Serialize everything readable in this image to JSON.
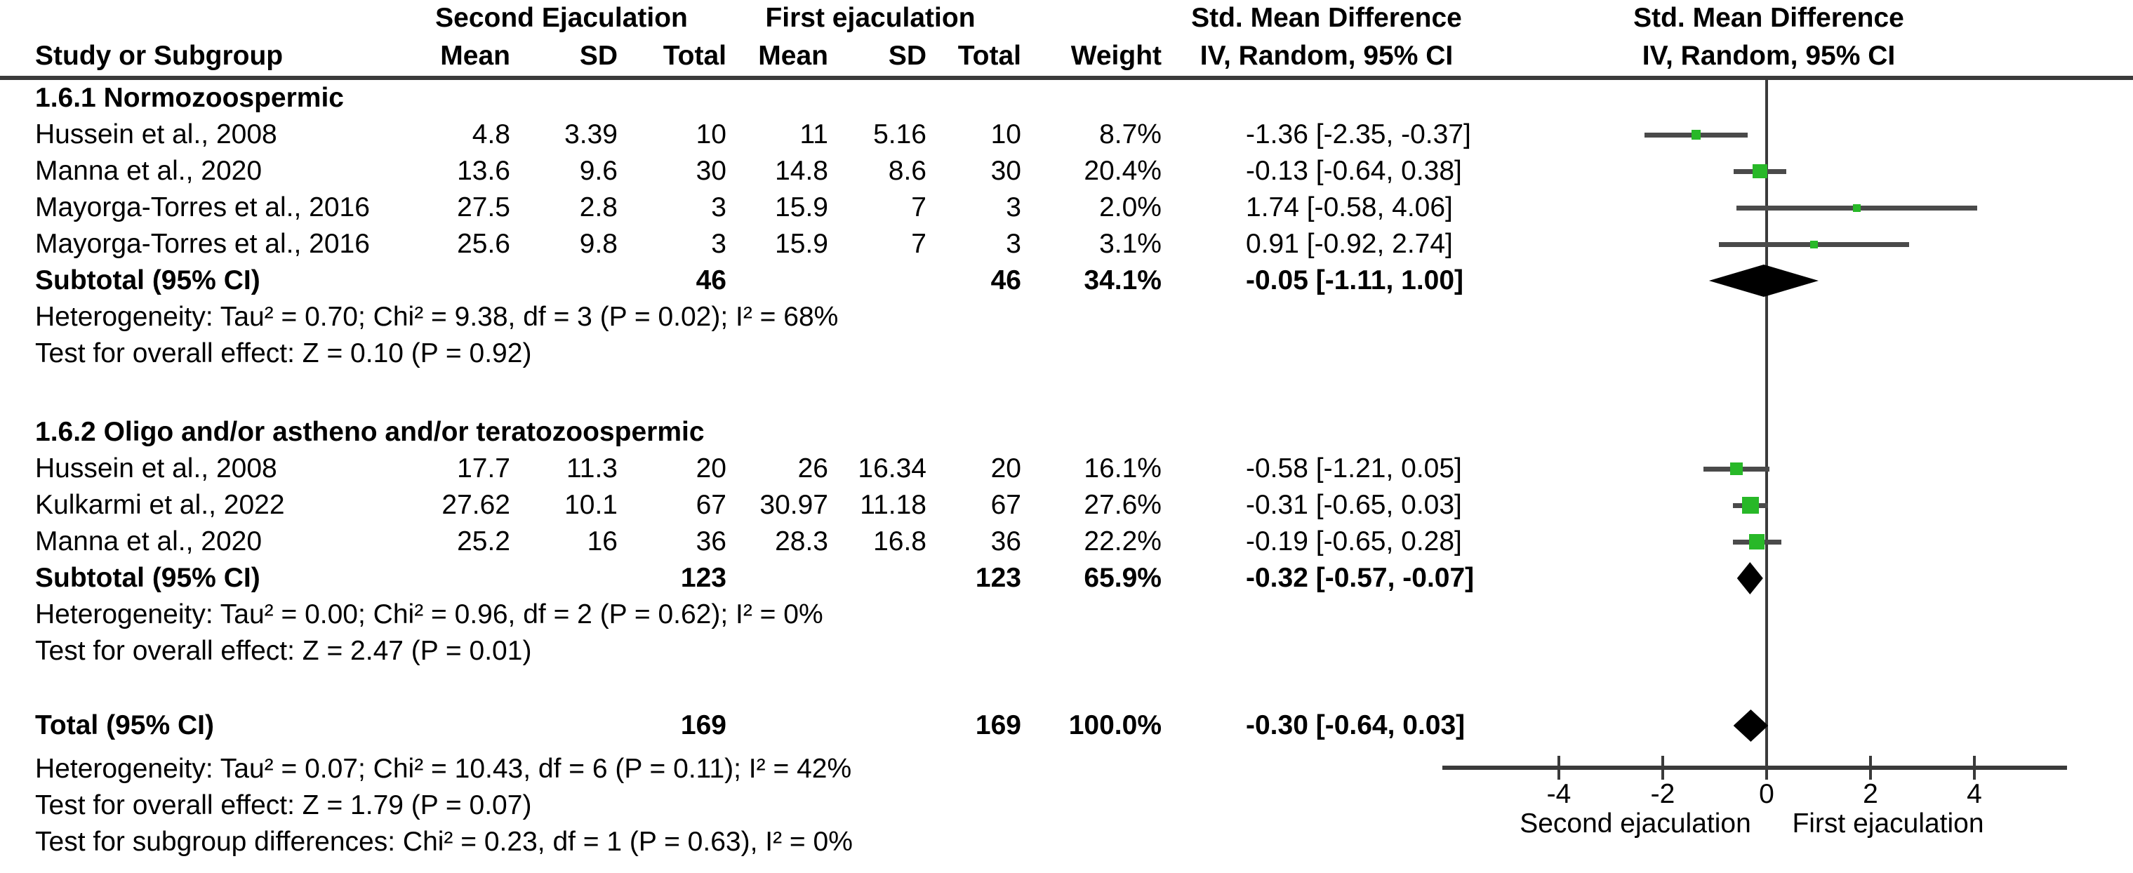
{
  "chart_data": {
    "type": "forest",
    "effect_measure": "Std. Mean Difference",
    "model": "IV, Random, 95% CI",
    "columns": {
      "study": "Study or Subgroup",
      "group1": "Second Ejaculation",
      "group2": "First ejaculation",
      "mean": "Mean",
      "sd": "SD",
      "total": "Total",
      "weight": "Weight",
      "effect_title": "Std. Mean Difference",
      "model_label": "IV, Random, 95% CI"
    },
    "sections": [
      {
        "label": "1.6.1 Normozoospermic",
        "studies": [
          {
            "name": "Hussein et al., 2008",
            "mean1": "4.8",
            "sd1": "3.39",
            "total1": "10",
            "mean2": "11",
            "sd2": "5.16",
            "total2": "10",
            "weight": "8.7%",
            "w": 8.7,
            "ci_text": "-1.36 [-2.35, -0.37]",
            "est": -1.36,
            "lo": -2.35,
            "hi": -0.37
          },
          {
            "name": "Manna et al., 2020",
            "mean1": "13.6",
            "sd1": "9.6",
            "total1": "30",
            "mean2": "14.8",
            "sd2": "8.6",
            "total2": "30",
            "weight": "20.4%",
            "w": 20.4,
            "ci_text": "-0.13 [-0.64, 0.38]",
            "est": -0.13,
            "lo": -0.64,
            "hi": 0.38
          },
          {
            "name": "Mayorga-Torres et al., 2016",
            "mean1": "27.5",
            "sd1": "2.8",
            "total1": "3",
            "mean2": "15.9",
            "sd2": "7",
            "total2": "3",
            "weight": "2.0%",
            "w": 2.0,
            "ci_text": "1.74 [-0.58, 4.06]",
            "est": 1.74,
            "lo": -0.58,
            "hi": 4.06
          },
          {
            "name": "Mayorga-Torres et al., 2016",
            "mean1": "25.6",
            "sd1": "9.8",
            "total1": "3",
            "mean2": "15.9",
            "sd2": "7",
            "total2": "3",
            "weight": "3.1%",
            "w": 3.1,
            "ci_text": "0.91 [-0.92, 2.74]",
            "est": 0.91,
            "lo": -0.92,
            "hi": 2.74
          }
        ],
        "subtotal": {
          "label": "Subtotal (95% CI)",
          "total1": "46",
          "total2": "46",
          "weight": "34.1%",
          "ci_text": "-0.05 [-1.11, 1.00]",
          "est": -0.05,
          "lo": -1.11,
          "hi": 1.0
        },
        "heterogeneity": "Heterogeneity: Tau² = 0.70; Chi² = 9.38, df = 3 (P = 0.02); I² = 68%",
        "overall_effect": "Test for overall effect: Z = 0.10 (P = 0.92)"
      },
      {
        "label": "1.6.2 Oligo and/or astheno and/or teratozoospermic",
        "studies": [
          {
            "name": "Hussein et al., 2008",
            "mean1": "17.7",
            "sd1": "11.3",
            "total1": "20",
            "mean2": "26",
            "sd2": "16.34",
            "total2": "20",
            "weight": "16.1%",
            "w": 16.1,
            "ci_text": "-0.58 [-1.21, 0.05]",
            "est": -0.58,
            "lo": -1.21,
            "hi": 0.05
          },
          {
            "name": "Kulkarmi et al., 2022",
            "mean1": "27.62",
            "sd1": "10.1",
            "total1": "67",
            "mean2": "30.97",
            "sd2": "11.18",
            "total2": "67",
            "weight": "27.6%",
            "w": 27.6,
            "ci_text": "-0.31 [-0.65, 0.03]",
            "est": -0.31,
            "lo": -0.65,
            "hi": 0.03
          },
          {
            "name": "Manna et al., 2020",
            "mean1": "25.2",
            "sd1": "16",
            "total1": "36",
            "mean2": "28.3",
            "sd2": "16.8",
            "total2": "36",
            "weight": "22.2%",
            "w": 22.2,
            "ci_text": "-0.19 [-0.65, 0.28]",
            "est": -0.19,
            "lo": -0.65,
            "hi": 0.28
          }
        ],
        "subtotal": {
          "label": "Subtotal (95% CI)",
          "total1": "123",
          "total2": "123",
          "weight": "65.9%",
          "ci_text": "-0.32 [-0.57, -0.07]",
          "est": -0.32,
          "lo": -0.57,
          "hi": -0.07
        },
        "heterogeneity": "Heterogeneity: Tau² = 0.00; Chi² = 0.96, df = 2 (P = 0.62); I² = 0%",
        "overall_effect": "Test for overall effect: Z = 2.47 (P = 0.01)"
      }
    ],
    "total": {
      "label": "Total (95% CI)",
      "total1": "169",
      "total2": "169",
      "weight": "100.0%",
      "ci_text": "-0.30 [-0.64, 0.03]",
      "est": -0.3,
      "lo": -0.64,
      "hi": 0.03
    },
    "footer": {
      "heterogeneity": "Heterogeneity: Tau² = 0.07; Chi² = 10.43, df = 6 (P = 0.11); I² = 42%",
      "overall_effect": "Test for overall effect: Z = 1.79 (P = 0.07)",
      "subgroup_differences": "Test for subgroup differences: Chi² = 0.23, df = 1 (P = 0.63), I² = 0%"
    },
    "x_axis": {
      "ticks": [
        -4,
        -2,
        0,
        2,
        4
      ],
      "tick_labels": [
        "-4",
        "-2",
        "0",
        "2",
        "4"
      ],
      "range": [
        -6.2,
        5.8
      ],
      "label_left": "Second ejaculation",
      "label_right": "First ejaculation"
    }
  },
  "colors": {
    "marker_green": "#28b828",
    "ci_line": "#4a4a4a",
    "diamond": "#000000",
    "rule": "#3b3b3b"
  }
}
